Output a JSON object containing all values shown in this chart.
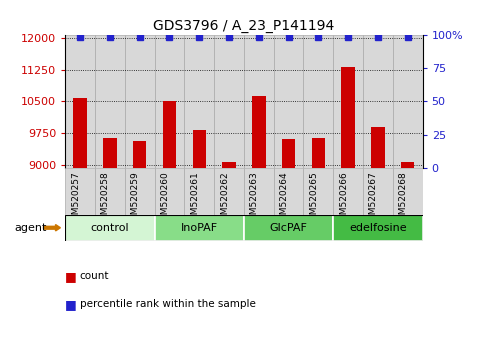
{
  "title": "GDS3796 / A_23_P141194",
  "samples": [
    "GSM520257",
    "GSM520258",
    "GSM520259",
    "GSM520260",
    "GSM520261",
    "GSM520262",
    "GSM520263",
    "GSM520264",
    "GSM520265",
    "GSM520266",
    "GSM520267",
    "GSM520268"
  ],
  "counts": [
    10570,
    9640,
    9570,
    10520,
    9840,
    9080,
    10620,
    9620,
    9640,
    11310,
    9910,
    9090
  ],
  "ylim_left": [
    8950,
    12050
  ],
  "yticks_left": [
    9000,
    9750,
    10500,
    11250,
    12000
  ],
  "ylim_right": [
    0,
    100
  ],
  "yticks_right": [
    0,
    25,
    50,
    75,
    100
  ],
  "bar_color": "#cc0000",
  "dot_color": "#2222cc",
  "percentile_value": 99,
  "groups": [
    {
      "label": "control",
      "start": 0,
      "end": 3,
      "color": "#d4f5d4"
    },
    {
      "label": "InoPAF",
      "start": 3,
      "end": 6,
      "color": "#88dd88"
    },
    {
      "label": "GlcPAF",
      "start": 6,
      "end": 9,
      "color": "#66cc66"
    },
    {
      "label": "edelfosine",
      "start": 9,
      "end": 12,
      "color": "#44bb44"
    }
  ],
  "col_bg_color": "#d8d8d8",
  "col_border_color": "#aaaaaa",
  "agent_label": "agent",
  "legend_count_color": "#cc0000",
  "legend_pct_color": "#2222cc",
  "tick_label_color_left": "#cc0000",
  "tick_label_color_right": "#2222cc",
  "background_color": "#ffffff",
  "plot_bg_color": "#ffffff",
  "gridline_color": "#000000",
  "gridline_style": "dotted",
  "gridline_lw": 0.6,
  "title_fontsize": 10,
  "tick_fontsize": 8,
  "sample_fontsize": 6.5,
  "group_fontsize": 8,
  "legend_fontsize": 7.5,
  "agent_fontsize": 8
}
